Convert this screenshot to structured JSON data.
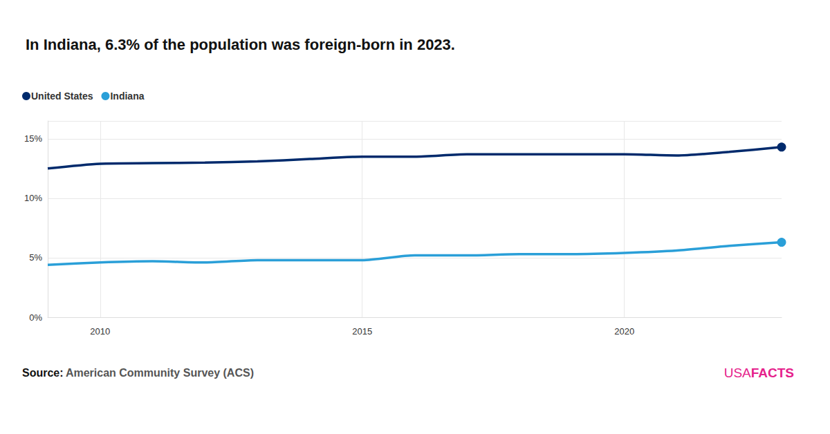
{
  "chart_data": {
    "type": "line",
    "title": "In Indiana, 6.3% of the population was foreign-born in 2023.",
    "source_label": "Source:",
    "source": "American Community Survey (ACS)",
    "brand": [
      "USA",
      "FACTS"
    ],
    "x": [
      2009,
      2010,
      2011,
      2012,
      2013,
      2014,
      2015,
      2016,
      2017,
      2018,
      2019,
      2020,
      2021,
      2022,
      2023
    ],
    "series": [
      {
        "name": "United States",
        "color": "#002a6c",
        "values": [
          12.5,
          12.9,
          12.95,
          13.0,
          13.1,
          13.3,
          13.5,
          13.5,
          13.7,
          13.7,
          13.7,
          13.7,
          13.6,
          13.9,
          14.3
        ]
      },
      {
        "name": "Indiana",
        "color": "#2a9fd8",
        "values": [
          4.4,
          4.6,
          4.7,
          4.6,
          4.8,
          4.8,
          4.8,
          5.2,
          5.2,
          5.3,
          5.3,
          5.4,
          5.6,
          6.0,
          6.3
        ]
      }
    ],
    "xlim": [
      2009,
      2023
    ],
    "xticks": [
      2010,
      2015,
      2020
    ],
    "ylim": [
      0,
      16.5
    ],
    "yticks": [
      {
        "value": 0,
        "label": "0%"
      },
      {
        "value": 5,
        "label": "5%"
      },
      {
        "value": 10,
        "label": "10%"
      },
      {
        "value": 15,
        "label": "15%"
      }
    ],
    "grid": true,
    "legend": "top-left",
    "marker": "last"
  }
}
